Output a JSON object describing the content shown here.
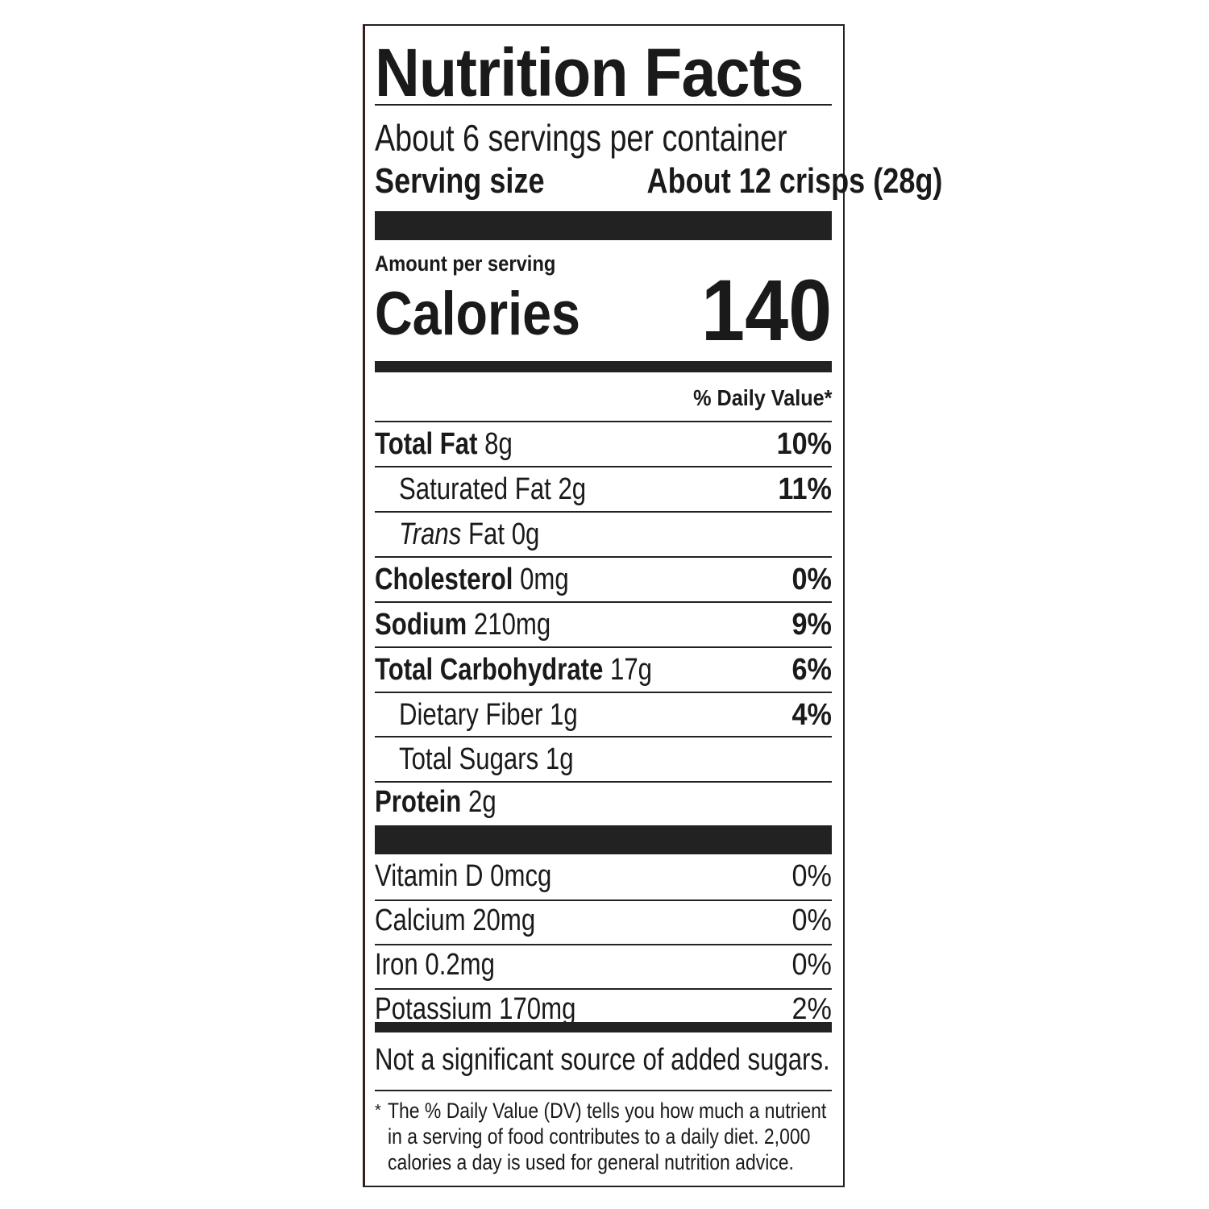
{
  "title": "Nutrition Facts",
  "servings_per_container": "About 6 servings per container",
  "serving_size_label": "Serving size",
  "serving_size_value": "About 12 crisps (28g)",
  "amount_per_serving": "Amount per serving",
  "calories_label": "Calories",
  "calories_value": "140",
  "daily_value_header": "% Daily Value*",
  "nutrients": [
    {
      "name": "Total Fat",
      "amount": "8g",
      "dv": "10%"
    },
    {
      "name": "Saturated Fat",
      "amount": "2g",
      "dv": "11%"
    },
    {
      "name": "Trans",
      "name_rest": "Fat",
      "amount": "0g",
      "dv": ""
    },
    {
      "name": "Cholesterol",
      "amount": "0mg",
      "dv": "0%"
    },
    {
      "name": "Sodium",
      "amount": "210mg",
      "dv": "9%"
    },
    {
      "name": "Total Carbohydrate",
      "amount": "17g",
      "dv": "6%"
    },
    {
      "name": "Dietary Fiber",
      "amount": "1g",
      "dv": "4%"
    },
    {
      "name": "Total Sugars",
      "amount": "1g",
      "dv": ""
    },
    {
      "name": "Protein",
      "amount": "2g",
      "dv": ""
    }
  ],
  "vitamins": [
    {
      "name": "Vitamin D",
      "amount": "0mcg",
      "dv": "0%"
    },
    {
      "name": "Calcium",
      "amount": "20mg",
      "dv": "0%"
    },
    {
      "name": "Iron",
      "amount": "0.2mg",
      "dv": "0%"
    },
    {
      "name": "Potassium",
      "amount": "170mg",
      "dv": "2%"
    }
  ],
  "added_sugars_note": "Not a significant source of added sugars.",
  "footnote_star": "*",
  "footnote_lines": [
    "The % Daily Value (DV) tells you how much a nutrient",
    "in a serving of food contributes to a daily diet. 2,000",
    "calories a day is used for general nutrition advice."
  ]
}
